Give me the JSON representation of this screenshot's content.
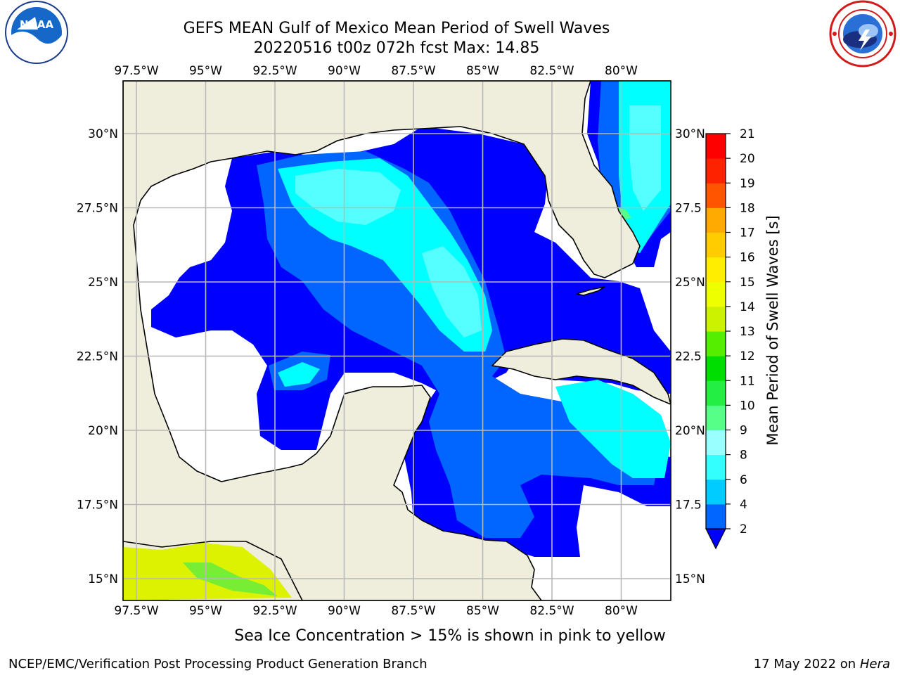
{
  "header": {
    "title_line1": "GEFS MEAN Gulf of Mexico Mean Period of Swell Waves",
    "title_line2": "20220516 t00z 072h fcst   Max: 14.85"
  },
  "logos": {
    "left": "noaa-logo",
    "right": "national-weather-service-logo"
  },
  "map": {
    "lon_labels": [
      "97.5°W",
      "95°W",
      "92.5°W",
      "90°W",
      "87.5°W",
      "85°W",
      "82.5°W",
      "80°W"
    ],
    "lat_labels_left": [
      "30°N",
      "27.5°N",
      "25°N",
      "22.5°N",
      "20°N",
      "17.5°N",
      "15°N"
    ],
    "lat_labels_right": [
      "30°N",
      "27.5",
      "25°N",
      "22.5",
      "20°N",
      "17.5",
      "15°N"
    ],
    "colors": {
      "land": "#efeedc",
      "coast": "#000000",
      "grid": "#b8b8b8"
    }
  },
  "colorbar": {
    "label": "Mean Period of Swell Waves [s]",
    "ticks": [
      "2",
      "4",
      "6",
      "8",
      "9",
      "10",
      "11",
      "12",
      "13",
      "14",
      "15",
      "16",
      "17",
      "18",
      "19",
      "20",
      "21"
    ],
    "colors": [
      "#0066ff",
      "#00ccff",
      "#33ffff",
      "#66ffff",
      "#99ffff",
      "#55ff88",
      "#22ee44",
      "#00dd00",
      "#55ee00",
      "#99ee00",
      "#ccf200",
      "#eeff00",
      "#ffee00",
      "#ffcc00",
      "#ffaa00",
      "#ff8800",
      "#ff5500",
      "#ff2200",
      "#ff0000"
    ],
    "under_color": "#0000ff"
  },
  "footer": {
    "subtitle": "Sea Ice Concentration > 15% is shown in pink to yellow",
    "credit": "NCEP/EMC/Verification Post Processing Product Generation Branch",
    "date": "17 May 2022 on",
    "host": "Hera"
  }
}
